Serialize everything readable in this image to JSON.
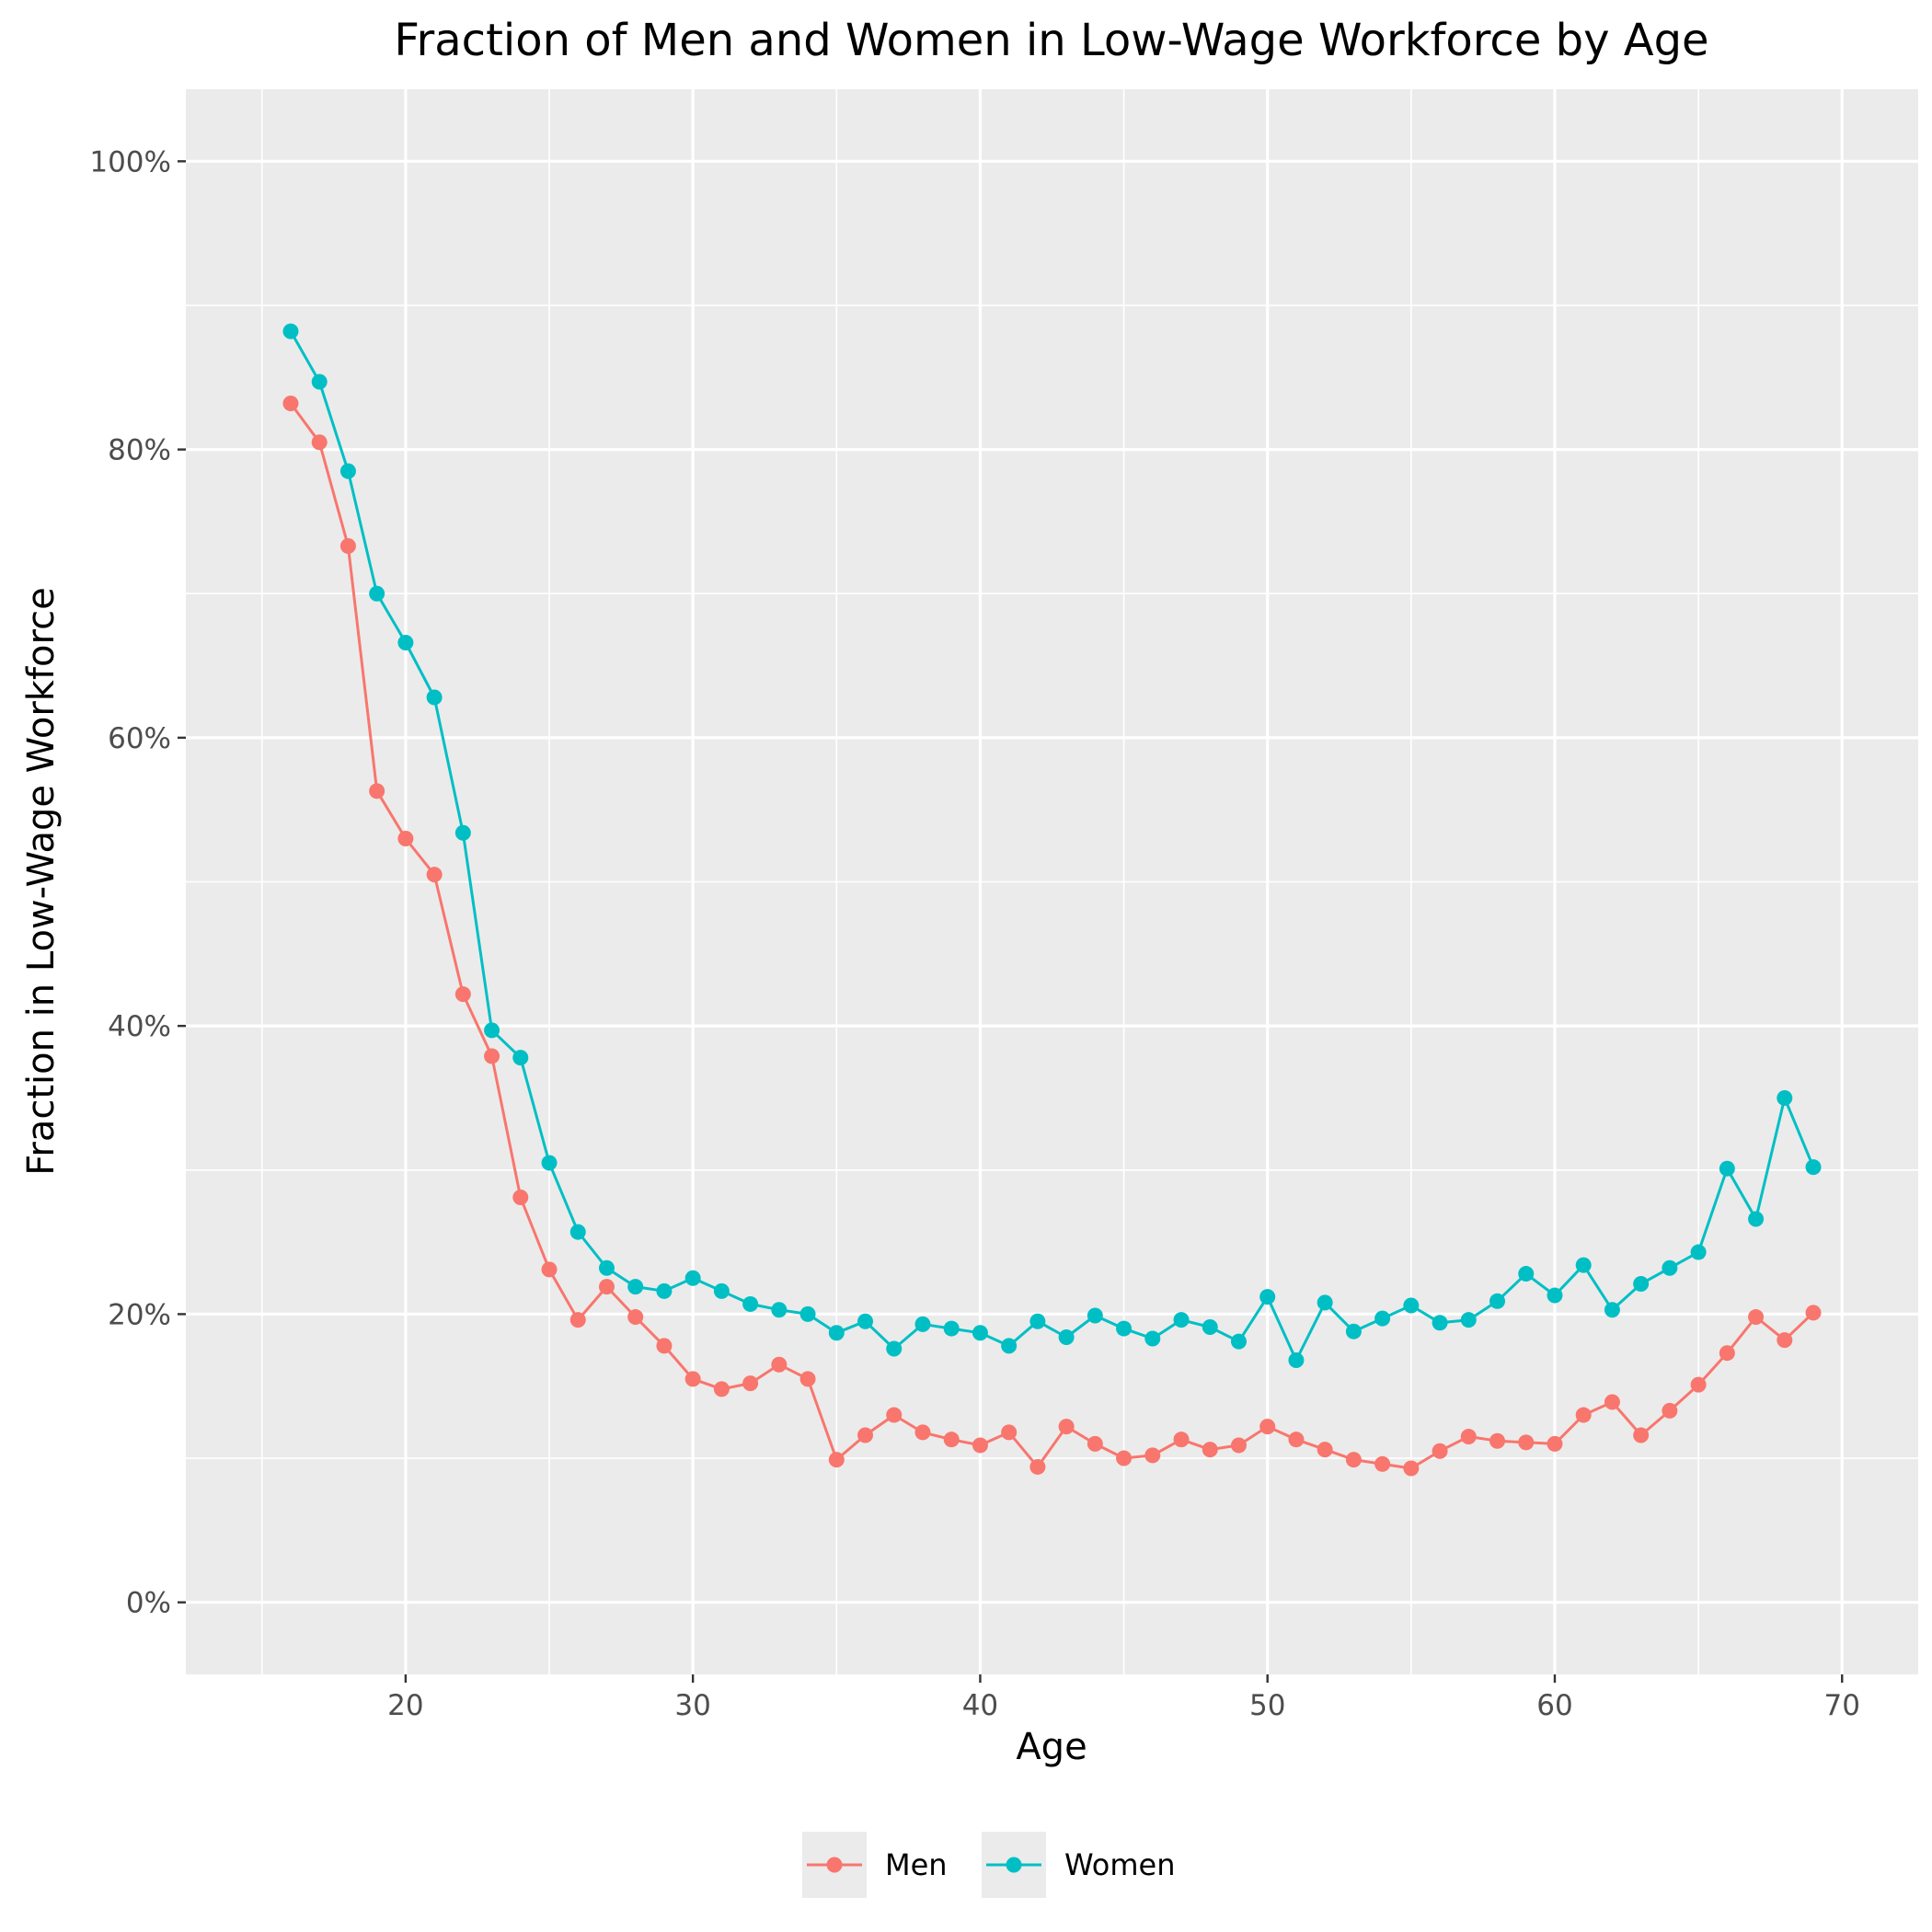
{
  "chart_data": {
    "type": "line",
    "title": "Fraction of Men and Women in Low-Wage Workforce by Age",
    "xlabel": "Age",
    "ylabel": "Fraction in Low-Wage Workforce",
    "xlim": [
      12.35,
      72.65
    ],
    "ylim": [
      -0.05,
      1.05
    ],
    "x_ticks": [
      20,
      30,
      40,
      50,
      60,
      70
    ],
    "x_tick_labels": [
      "20",
      "30",
      "40",
      "50",
      "60",
      "70"
    ],
    "y_ticks": [
      0,
      0.2,
      0.4,
      0.6,
      0.8,
      1.0
    ],
    "y_tick_labels": [
      "0%",
      "20%",
      "40%",
      "60%",
      "80%",
      "100%"
    ],
    "grid": true,
    "legend_position": "bottom",
    "x": [
      16,
      17,
      18,
      19,
      20,
      21,
      22,
      23,
      24,
      25,
      26,
      27,
      28,
      29,
      30,
      31,
      32,
      33,
      34,
      35,
      36,
      37,
      38,
      39,
      40,
      41,
      42,
      43,
      44,
      45,
      46,
      47,
      48,
      49,
      50,
      51,
      52,
      53,
      54,
      55,
      56,
      57,
      58,
      59,
      60,
      61,
      62,
      63,
      64,
      65,
      66,
      67,
      68,
      69
    ],
    "series": [
      {
        "name": "Men",
        "color": "#F8766D",
        "values": [
          0.832,
          0.805,
          0.733,
          0.563,
          0.53,
          0.505,
          0.422,
          0.379,
          0.281,
          0.231,
          0.196,
          0.219,
          0.198,
          0.178,
          0.155,
          0.148,
          0.152,
          0.165,
          0.155,
          0.099,
          0.116,
          0.13,
          0.118,
          0.113,
          0.109,
          0.118,
          0.094,
          0.122,
          0.11,
          0.1,
          0.102,
          0.113,
          0.106,
          0.109,
          0.122,
          0.113,
          0.106,
          0.099,
          0.096,
          0.093,
          0.105,
          0.115,
          0.112,
          0.111,
          0.11,
          0.13,
          0.139,
          0.116,
          0.133,
          0.151,
          0.173,
          0.198,
          0.182,
          0.201
        ]
      },
      {
        "name": "Women",
        "color": "#00BFC4",
        "values": [
          0.882,
          0.847,
          0.785,
          0.7,
          0.666,
          0.628,
          0.534,
          0.397,
          0.378,
          0.305,
          0.257,
          0.232,
          0.219,
          0.216,
          0.225,
          0.216,
          0.207,
          0.203,
          0.2,
          0.187,
          0.195,
          0.176,
          0.193,
          0.19,
          0.187,
          0.178,
          0.195,
          0.184,
          0.199,
          0.19,
          0.183,
          0.196,
          0.191,
          0.181,
          0.212,
          0.168,
          0.208,
          0.188,
          0.197,
          0.206,
          0.194,
          0.196,
          0.209,
          0.228,
          0.213,
          0.234,
          0.203,
          0.221,
          0.232,
          0.243,
          0.301,
          0.266,
          0.35,
          0.302
        ]
      }
    ]
  }
}
